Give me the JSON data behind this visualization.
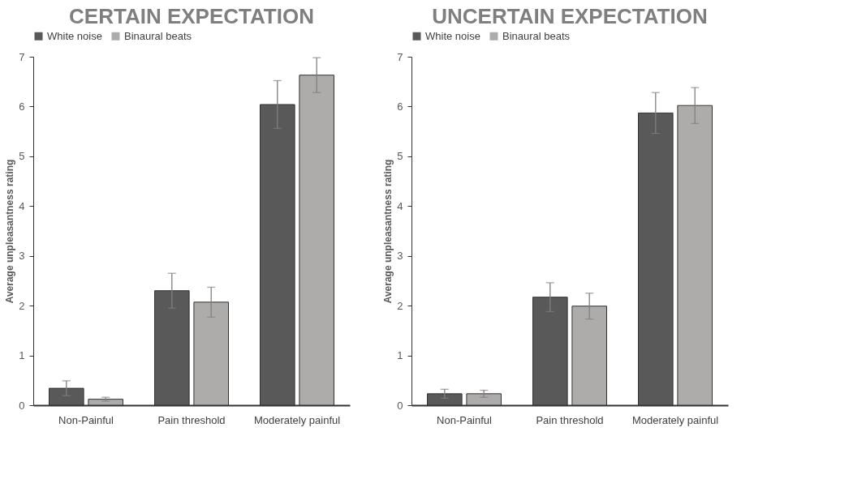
{
  "chart_data": [
    {
      "type": "bar",
      "title": "CERTAIN EXPECTATION",
      "ylabel": "Average  unpleasantness   rating",
      "categories": [
        "Non-Painful",
        "Pain threshold",
        "Moderately painful"
      ],
      "series": [
        {
          "name": "White noise",
          "color": "#595959",
          "values": [
            0.34,
            2.3,
            6.04
          ],
          "errors": [
            0.15,
            0.35,
            0.48
          ]
        },
        {
          "name": "Binaural beats",
          "color": "#aeabab",
          "values": [
            0.12,
            2.07,
            6.63
          ],
          "errors": [
            0.04,
            0.3,
            0.35
          ]
        }
      ],
      "ylim": [
        0,
        7
      ],
      "yticks": [
        {
          "value": 0,
          "label": "0"
        },
        {
          "value": 1,
          "label": "1"
        },
        {
          "value": 2,
          "label": "2"
        },
        {
          "value": 3,
          "label": "3"
        },
        {
          "value": 4,
          "label": "4"
        },
        {
          "value": 5,
          "label": "5"
        },
        {
          "value": 6,
          "label": "6"
        },
        {
          "value": 7,
          "label": "7"
        }
      ],
      "grid": false,
      "legend": "top"
    },
    {
      "type": "bar",
      "title": "UNCERTAIN EXPECTATION",
      "ylabel": "Average  unpleasantness   rating",
      "categories": [
        "Non-Painful",
        "Pain threshold",
        "Moderately painful"
      ],
      "series": [
        {
          "name": "White noise",
          "color": "#595959",
          "values": [
            0.23,
            2.17,
            5.87
          ],
          "errors": [
            0.09,
            0.29,
            0.41
          ]
        },
        {
          "name": "Binaural beats",
          "color": "#aeabab",
          "values": [
            0.23,
            1.99,
            6.02
          ],
          "errors": [
            0.07,
            0.26,
            0.36
          ]
        }
      ],
      "ylim": [
        0,
        7
      ],
      "yticks": [
        {
          "value": 0,
          "label": "0"
        },
        {
          "value": 1,
          "label": "1"
        },
        {
          "value": 2,
          "label": "2"
        },
        {
          "value": 3,
          "label": "3"
        },
        {
          "value": 4,
          "label": "4"
        },
        {
          "value": 5,
          "label": "5"
        },
        {
          "value": 6,
          "label": "6"
        },
        {
          "value": 7,
          "label": "7"
        }
      ],
      "grid": false,
      "legend": "top"
    }
  ]
}
